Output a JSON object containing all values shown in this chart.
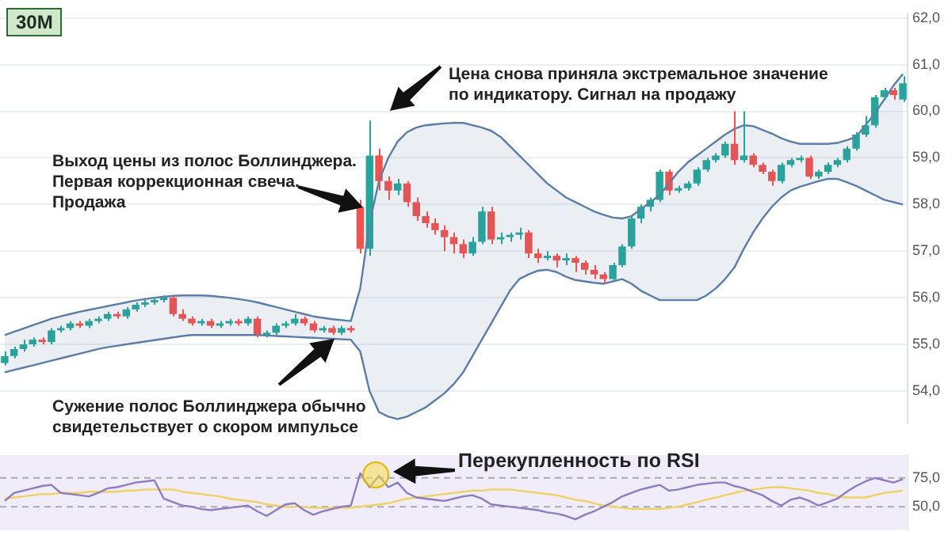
{
  "chart_data": [
    {
      "type": "candlestick",
      "title": "30M",
      "categories": [
        null,
        null,
        null,
        null,
        null,
        null,
        null,
        null,
        null,
        null,
        null,
        null,
        null,
        null,
        null,
        null,
        null,
        null,
        null,
        null,
        null,
        null,
        null,
        null,
        null,
        null,
        null,
        null,
        null,
        null,
        null,
        null,
        null,
        null,
        null,
        null,
        null,
        null,
        null,
        null,
        null,
        null,
        null,
        null,
        null,
        null,
        null,
        null,
        null,
        null,
        null,
        null,
        null,
        null,
        null,
        null,
        null,
        null,
        null,
        null,
        null,
        null,
        null,
        null,
        null,
        null,
        null,
        null,
        null,
        null,
        null,
        null,
        null,
        null,
        null,
        null,
        null,
        null,
        null,
        null,
        null,
        null,
        null,
        null,
        null,
        null,
        null,
        null,
        null,
        null,
        null,
        null,
        null,
        null,
        null,
        null,
        null
      ],
      "ohlc": [
        [
          54.6,
          54.85,
          54.55,
          54.75
        ],
        [
          54.75,
          54.95,
          54.7,
          54.9
        ],
        [
          54.9,
          55.1,
          54.85,
          55.0
        ],
        [
          55.0,
          55.15,
          54.95,
          55.1
        ],
        [
          55.1,
          55.15,
          55.0,
          55.05
        ],
        [
          55.05,
          55.35,
          55.0,
          55.3
        ],
        [
          55.3,
          55.4,
          55.25,
          55.35
        ],
        [
          55.35,
          55.5,
          55.3,
          55.45
        ],
        [
          55.45,
          55.5,
          55.35,
          55.4
        ],
        [
          55.4,
          55.55,
          55.35,
          55.5
        ],
        [
          55.5,
          55.6,
          55.45,
          55.55
        ],
        [
          55.55,
          55.7,
          55.5,
          55.65
        ],
        [
          55.65,
          55.7,
          55.55,
          55.6
        ],
        [
          55.6,
          55.8,
          55.55,
          55.75
        ],
        [
          55.75,
          55.9,
          55.7,
          55.85
        ],
        [
          55.85,
          55.95,
          55.8,
          55.9
        ],
        [
          55.9,
          56.0,
          55.85,
          55.95
        ],
        [
          55.95,
          56.05,
          55.9,
          56.0
        ],
        [
          56.0,
          56.05,
          55.6,
          55.65
        ],
        [
          55.65,
          55.75,
          55.5,
          55.55
        ],
        [
          55.55,
          55.6,
          55.4,
          55.45
        ],
        [
          55.45,
          55.55,
          55.4,
          55.5
        ],
        [
          55.5,
          55.55,
          55.35,
          55.4
        ],
        [
          55.4,
          55.5,
          55.35,
          55.45
        ],
        [
          55.45,
          55.55,
          55.4,
          55.5
        ],
        [
          55.5,
          55.55,
          55.4,
          55.45
        ],
        [
          55.45,
          55.6,
          55.4,
          55.55
        ],
        [
          55.55,
          55.6,
          55.15,
          55.2
        ],
        [
          55.2,
          55.3,
          55.15,
          55.25
        ],
        [
          55.25,
          55.45,
          55.2,
          55.4
        ],
        [
          55.4,
          55.5,
          55.35,
          55.45
        ],
        [
          55.45,
          55.65,
          55.4,
          55.55
        ],
        [
          55.55,
          55.6,
          55.4,
          55.45
        ],
        [
          55.45,
          55.5,
          55.25,
          55.3
        ],
        [
          55.3,
          55.4,
          55.25,
          55.35
        ],
        [
          55.35,
          55.4,
          55.2,
          55.25
        ],
        [
          55.25,
          55.4,
          55.2,
          55.35
        ],
        [
          55.35,
          55.4,
          55.25,
          55.3
        ],
        [
          57.95,
          58.1,
          56.95,
          57.05
        ],
        [
          57.05,
          59.8,
          56.9,
          59.05
        ],
        [
          59.05,
          59.2,
          58.3,
          58.5
        ],
        [
          58.5,
          58.6,
          58.1,
          58.3
        ],
        [
          58.3,
          58.55,
          58.2,
          58.45
        ],
        [
          58.45,
          58.5,
          57.95,
          58.05
        ],
        [
          58.05,
          58.15,
          57.65,
          57.75
        ],
        [
          57.75,
          57.85,
          57.5,
          57.6
        ],
        [
          57.6,
          57.7,
          57.35,
          57.45
        ],
        [
          57.45,
          57.55,
          57.0,
          57.3
        ],
        [
          57.3,
          57.4,
          56.95,
          57.15
        ],
        [
          57.15,
          57.25,
          56.85,
          56.95
        ],
        [
          56.95,
          57.3,
          56.9,
          57.2
        ],
        [
          57.2,
          57.95,
          57.15,
          57.85
        ],
        [
          57.85,
          57.95,
          57.15,
          57.25
        ],
        [
          57.25,
          57.4,
          57.15,
          57.3
        ],
        [
          57.3,
          57.4,
          57.2,
          57.35
        ],
        [
          57.35,
          57.5,
          57.25,
          57.4
        ],
        [
          57.4,
          57.45,
          56.85,
          56.95
        ],
        [
          56.95,
          57.05,
          56.75,
          56.85
        ],
        [
          56.85,
          57.0,
          56.8,
          56.9
        ],
        [
          56.9,
          56.95,
          56.65,
          56.8
        ],
        [
          56.8,
          56.95,
          56.7,
          56.85
        ],
        [
          56.85,
          56.9,
          56.55,
          56.75
        ],
        [
          56.75,
          56.8,
          56.5,
          56.6
        ],
        [
          56.6,
          56.7,
          56.4,
          56.5
        ],
        [
          56.5,
          56.55,
          56.3,
          56.4
        ],
        [
          56.4,
          56.75,
          56.35,
          56.7
        ],
        [
          56.7,
          57.15,
          56.65,
          57.1
        ],
        [
          57.1,
          57.75,
          57.05,
          57.7
        ],
        [
          57.7,
          58.0,
          57.6,
          57.95
        ],
        [
          57.95,
          58.15,
          57.85,
          58.1
        ],
        [
          58.1,
          58.75,
          58.05,
          58.7
        ],
        [
          58.7,
          58.75,
          58.2,
          58.3
        ],
        [
          58.3,
          58.4,
          58.25,
          58.35
        ],
        [
          58.35,
          58.5,
          58.3,
          58.45
        ],
        [
          58.45,
          58.8,
          58.4,
          58.75
        ],
        [
          58.75,
          59.0,
          58.7,
          58.95
        ],
        [
          58.95,
          59.1,
          58.9,
          59.05
        ],
        [
          59.05,
          59.35,
          59.0,
          59.3
        ],
        [
          59.3,
          60.0,
          58.85,
          58.95
        ],
        [
          58.95,
          60.0,
          58.9,
          59.05
        ],
        [
          59.05,
          59.1,
          58.8,
          58.85
        ],
        [
          58.85,
          58.9,
          58.65,
          58.7
        ],
        [
          58.7,
          58.75,
          58.4,
          58.5
        ],
        [
          58.5,
          58.9,
          58.45,
          58.85
        ],
        [
          58.85,
          59.0,
          58.8,
          58.95
        ],
        [
          58.95,
          59.05,
          58.9,
          59.0
        ],
        [
          59.0,
          59.05,
          58.55,
          58.6
        ],
        [
          58.6,
          58.75,
          58.55,
          58.7
        ],
        [
          58.7,
          58.9,
          58.65,
          58.85
        ],
        [
          58.85,
          59.0,
          58.8,
          58.95
        ],
        [
          58.95,
          59.25,
          58.9,
          59.2
        ],
        [
          59.2,
          59.55,
          59.15,
          59.5
        ],
        [
          59.5,
          59.9,
          59.45,
          59.7
        ],
        [
          59.7,
          60.35,
          59.65,
          60.3
        ],
        [
          60.3,
          60.5,
          60.25,
          60.45
        ],
        [
          60.45,
          60.5,
          60.25,
          60.35
        ],
        [
          60.25,
          60.75,
          60.2,
          60.6
        ]
      ],
      "colors": [
        "#26a69a",
        "#26a69a",
        "#26a69a",
        "#26a69a",
        "#ef5350",
        "#26a69a",
        "#26a69a",
        "#26a69a",
        "#ef5350",
        "#26a69a",
        "#26a69a",
        "#26a69a",
        "#ef5350",
        "#26a69a",
        "#26a69a",
        "#26a69a",
        "#26a69a",
        "#26a69a",
        "#ef5350",
        "#ef5350",
        "#ef5350",
        "#26a69a",
        "#ef5350",
        "#26a69a",
        "#26a69a",
        "#ef5350",
        "#26a69a",
        "#ef5350",
        "#26a69a",
        "#26a69a",
        "#26a69a",
        "#26a69a",
        "#ef5350",
        "#ef5350",
        "#26a69a",
        "#ef5350",
        "#26a69a",
        "#ef5350",
        "#ef5350",
        "#26a69a",
        "#ef5350",
        "#ef5350",
        "#26a69a",
        "#ef5350",
        "#ef5350",
        "#ef5350",
        "#ef5350",
        "#ef5350",
        "#ef5350",
        "#ef5350",
        "#26a69a",
        "#26a69a",
        "#ef5350",
        "#26a69a",
        "#26a69a",
        "#26a69a",
        "#ef5350",
        "#ef5350",
        "#26a69a",
        "#ef5350",
        "#26a69a",
        "#ef5350",
        "#ef5350",
        "#ef5350",
        "#ef5350",
        "#26a69a",
        "#26a69a",
        "#26a69a",
        "#26a69a",
        "#26a69a",
        "#26a69a",
        "#ef5350",
        "#26a69a",
        "#26a69a",
        "#26a69a",
        "#26a69a",
        "#26a69a",
        "#26a69a",
        "#ef5350",
        "#26a69a",
        "#ef5350",
        "#ef5350",
        "#ef5350",
        "#26a69a",
        "#26a69a",
        "#26a69a",
        "#ef5350",
        "#26a69a",
        "#26a69a",
        "#26a69a",
        "#26a69a",
        "#26a69a",
        "#26a69a",
        "#26a69a",
        "#26a69a",
        "#ef5350",
        "#26a69a"
      ],
      "series": [
        {
          "type": "area",
          "color": "#5b7ea8",
          "values": [
            55.2,
            55.27,
            55.34,
            55.41,
            55.48,
            55.55,
            55.6,
            55.65,
            55.7,
            55.74,
            55.78,
            55.82,
            55.86,
            55.9,
            55.94,
            55.97,
            56.0,
            56.02,
            56.04,
            56.05,
            56.05,
            56.05,
            56.04,
            56.02,
            56.0,
            55.97,
            55.94,
            55.9,
            55.85,
            55.8,
            55.75,
            55.7,
            55.65,
            55.6,
            55.57,
            55.54,
            55.52,
            55.5,
            56.2,
            57.6,
            58.5,
            59.0,
            59.35,
            59.55,
            59.65,
            59.7,
            59.72,
            59.74,
            59.75,
            59.75,
            59.7,
            59.65,
            59.58,
            59.45,
            59.25,
            59.05,
            58.85,
            58.65,
            58.45,
            58.3,
            58.15,
            58.05,
            57.95,
            57.85,
            57.78,
            57.72,
            57.7,
            57.75,
            57.9,
            58.05,
            58.2,
            58.45,
            58.7,
            58.9,
            59.05,
            59.2,
            59.35,
            59.5,
            59.62,
            59.7,
            59.68,
            59.6,
            59.52,
            59.42,
            59.35,
            59.3,
            59.3,
            59.3,
            59.3,
            59.32,
            59.38,
            59.45,
            59.7,
            59.95,
            60.25,
            60.55,
            60.8
          ]
        },
        {
          "type": "line",
          "color": "#5b7ea8",
          "values": [
            54.4,
            54.45,
            54.5,
            54.55,
            54.6,
            54.65,
            54.7,
            54.75,
            54.8,
            54.85,
            54.9,
            54.94,
            54.97,
            55.0,
            55.03,
            55.06,
            55.09,
            55.12,
            55.15,
            55.18,
            55.2,
            55.2,
            55.2,
            55.2,
            55.2,
            55.2,
            55.2,
            55.2,
            55.19,
            55.18,
            55.17,
            55.16,
            55.15,
            55.14,
            55.13,
            55.12,
            55.11,
            55.1,
            54.85,
            54.0,
            53.55,
            53.45,
            53.4,
            53.45,
            53.55,
            53.65,
            53.8,
            53.95,
            54.15,
            54.4,
            54.75,
            55.1,
            55.45,
            55.8,
            56.15,
            56.4,
            56.5,
            56.58,
            56.6,
            56.55,
            56.45,
            56.38,
            56.35,
            56.32,
            56.3,
            56.35,
            56.4,
            56.3,
            56.15,
            56.05,
            55.95,
            55.95,
            55.95,
            55.95,
            55.95,
            56.05,
            56.2,
            56.4,
            56.65,
            57.05,
            57.4,
            57.7,
            57.95,
            58.15,
            58.3,
            58.38,
            58.44,
            58.5,
            58.55,
            58.55,
            58.48,
            58.4,
            58.3,
            58.2,
            58.1,
            58.05,
            58.0
          ]
        }
      ],
      "ylim": [
        53.3,
        62.1
      ],
      "yticks": [
        {
          "value": 54,
          "label": "54,0"
        },
        {
          "value": 55,
          "label": "55,0"
        },
        {
          "value": 56,
          "label": "56,0"
        },
        {
          "value": 57,
          "label": "57,0"
        },
        {
          "value": 58,
          "label": "58,0"
        },
        {
          "value": 59,
          "label": "59,0"
        },
        {
          "value": 60,
          "label": "60,0"
        },
        {
          "value": 61,
          "label": "61,0"
        },
        {
          "value": 62,
          "label": "62,0"
        }
      ],
      "grid": "y",
      "tick_labels": "y",
      "annotations": [
        "Выход цены из полос Боллинджера.\nПервая коррекционная свеча.\nПродажа",
        "Цена снова приняла экстремальное значение\nпо индикатору. Сигнал на продажу",
        "Сужение полос Боллинджера обычно\nсвидетельствует о скором импульсе"
      ]
    },
    {
      "type": "line",
      "series": [
        {
          "color": "#8e7cc3",
          "values": [
            55,
            62,
            64,
            66,
            68,
            69,
            62,
            61,
            60,
            59,
            62,
            66,
            67,
            69,
            71,
            72,
            73,
            57,
            54,
            51,
            50,
            48,
            47,
            48,
            49,
            50,
            51,
            46,
            42,
            47,
            52,
            53,
            47,
            43,
            46,
            48,
            50,
            51,
            79,
            67,
            77,
            67,
            71,
            62,
            58,
            57,
            56,
            55,
            57,
            59,
            60,
            57,
            52,
            51,
            50,
            49,
            48,
            47,
            45,
            44,
            42,
            39,
            43,
            46,
            50,
            54,
            59,
            62,
            65,
            67,
            69,
            64,
            65,
            67,
            69,
            70,
            71,
            71,
            68,
            66,
            63,
            60,
            55,
            51,
            56,
            58,
            55,
            51,
            54,
            57,
            63,
            68,
            72,
            75,
            73,
            71,
            74
          ]
        },
        {
          "color": "#f0d264",
          "values": [
            57,
            58,
            59,
            60,
            61,
            61,
            62,
            62,
            62,
            63,
            63,
            63,
            63,
            64,
            64,
            65,
            65,
            65,
            65,
            63,
            62,
            61,
            60,
            59,
            57,
            56,
            55,
            54,
            52,
            51,
            50,
            50,
            50,
            49,
            49,
            49,
            49,
            49,
            50,
            51,
            52,
            53,
            55,
            57,
            58,
            59,
            60,
            61,
            62,
            63,
            64,
            64,
            65,
            65,
            65,
            64,
            63,
            62,
            61,
            60,
            58,
            56,
            55,
            53,
            51,
            50,
            49,
            48,
            48,
            48,
            48,
            49,
            50,
            52,
            54,
            56,
            58,
            60,
            62,
            64,
            65,
            66,
            67,
            67,
            66,
            65,
            64,
            62,
            61,
            59,
            58,
            58,
            58,
            60,
            62,
            63,
            64
          ]
        }
      ],
      "categories": [
        null,
        null,
        null,
        null,
        null,
        null,
        null,
        null,
        null,
        null,
        null,
        null,
        null,
        null,
        null,
        null,
        null,
        null,
        null,
        null,
        null,
        null,
        null,
        null,
        null,
        null,
        null,
        null,
        null,
        null,
        null,
        null,
        null,
        null,
        null,
        null,
        null,
        null,
        null,
        null,
        null,
        null,
        null,
        null,
        null,
        null,
        null,
        null,
        null,
        null,
        null,
        null,
        null,
        null,
        null,
        null,
        null,
        null,
        null,
        null,
        null,
        null,
        null,
        null,
        null,
        null,
        null,
        null,
        null,
        null,
        null,
        null,
        null,
        null,
        null,
        null,
        null,
        null,
        null,
        null,
        null,
        null,
        null,
        null,
        null,
        null,
        null,
        null,
        null,
        null,
        null,
        null,
        null,
        null,
        null,
        null,
        null
      ],
      "ylim": [
        30,
        95
      ],
      "yticks": [
        {
          "value": 50,
          "label": "50,0"
        },
        {
          "value": 75,
          "label": "75,0"
        }
      ],
      "tick_labels": "y",
      "marker": "none",
      "ref_lines": [
        {
          "axis": "y",
          "value": 75,
          "color": "#aaaaaa",
          "line_style": "dashed"
        },
        {
          "axis": "y",
          "value": 50,
          "color": "#aaaaaa",
          "line_style": "dashed"
        }
      ],
      "bands": [
        {
          "axis": "y",
          "from": 30,
          "to": 95,
          "color": "#f1ecf9"
        }
      ],
      "annotations": [
        "Перекупленность по RSI"
      ]
    }
  ]
}
